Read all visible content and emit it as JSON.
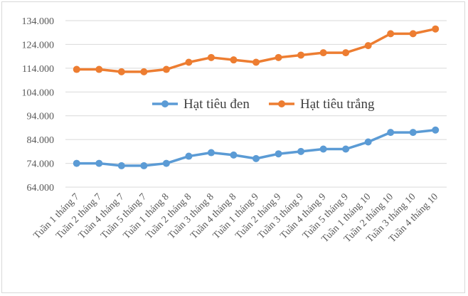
{
  "chart_data": {
    "type": "line",
    "title": "",
    "xlabel": "",
    "ylabel": "",
    "categories": [
      "Tuần 1 tháng 7",
      "Tuần 2 tháng 7",
      "Tuần 4 tháng 7",
      "Tuần 5 tháng 7",
      "Tuần 1 tháng 8",
      "Tuần 2 tháng 8",
      "Tuần 3 tháng 8",
      "Tuần 4 tháng 8",
      "Tuần 1 tháng 9",
      "Tuần 2 tháng 9",
      "Tuần 3 tháng 9",
      "Tuần 4 tháng 9",
      "Tuần 5 tháng 9",
      "Tuần 1 tháng 10",
      "Tuần 2 tháng 10",
      "Tuần 3 tháng 10",
      "Tuần 4 tháng 10"
    ],
    "series": [
      {
        "name": "Hạt tiêu đen",
        "color": "#5b9bd5",
        "values": [
          74000,
          74000,
          73000,
          73000,
          74000,
          77000,
          78500,
          77500,
          76000,
          78000,
          79000,
          80000,
          80000,
          83000,
          87000,
          87000,
          88000
        ]
      },
      {
        "name": "Hạt tiêu trắng",
        "color": "#ed7d31",
        "values": [
          113500,
          113500,
          112500,
          112500,
          113500,
          116500,
          118500,
          117500,
          116500,
          118500,
          119500,
          120500,
          120500,
          123500,
          128500,
          128500,
          130500
        ]
      }
    ],
    "ylim": [
      64000,
      134000
    ],
    "yticks": [
      64000,
      74000,
      84000,
      94000,
      104000,
      114000,
      124000,
      134000
    ],
    "ytick_labels": [
      "64.000",
      "74.000",
      "84.000",
      "94.000",
      "104.000",
      "114.000",
      "124.000",
      "134.000"
    ],
    "grid": true,
    "legend_position": "center"
  }
}
